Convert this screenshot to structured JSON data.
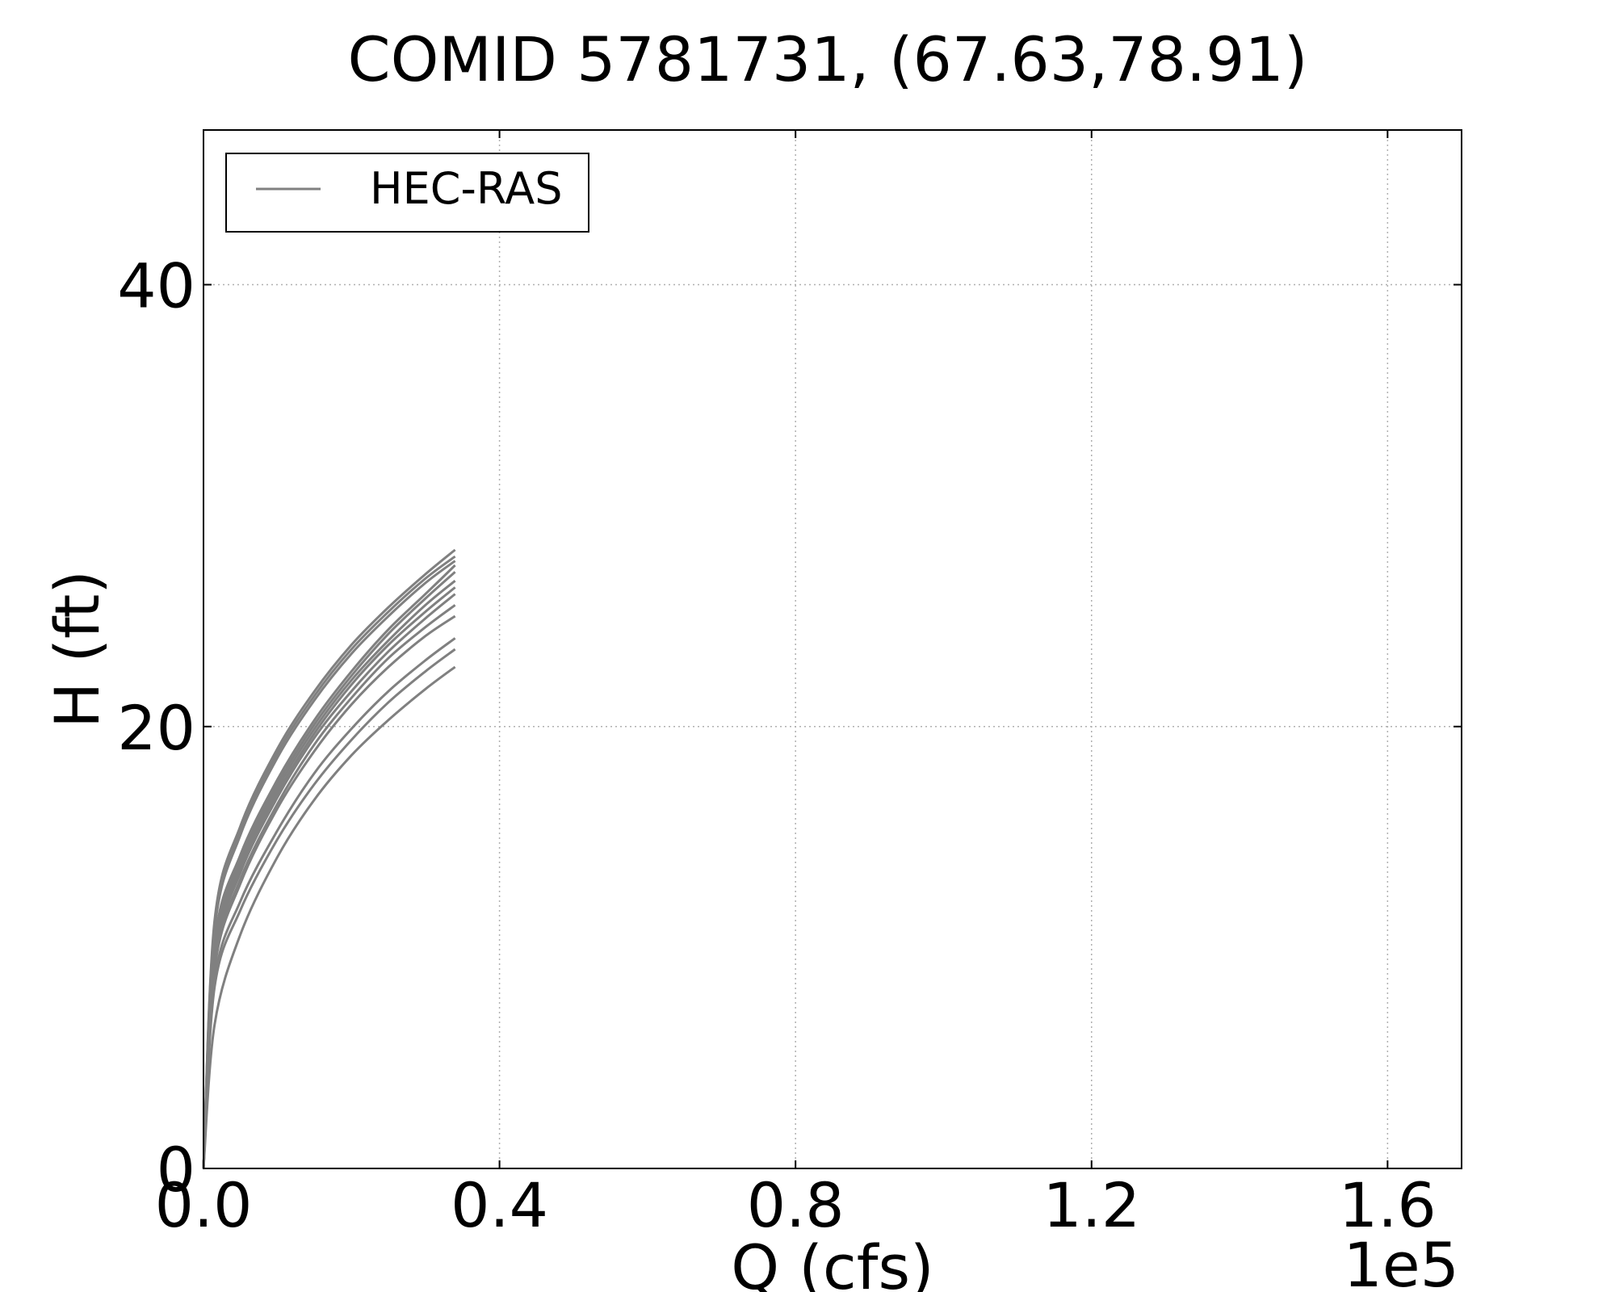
{
  "chart_data": {
    "type": "line",
    "title": "COMID 5781731, (67.63,78.91)",
    "xlabel": "Q (cfs)",
    "ylabel": "H (ft)",
    "x_offset_label": "1e5",
    "xlim": [
      0,
      1.7
    ],
    "ylim": [
      0,
      47
    ],
    "xticks": [
      0.0,
      0.4,
      0.8,
      1.2,
      1.6
    ],
    "xtick_labels": [
      "0.0",
      "0.4",
      "0.8",
      "1.2",
      "1.6"
    ],
    "yticks": [
      0,
      20,
      40
    ],
    "ytick_labels": [
      "0",
      "20",
      "40"
    ],
    "grid": true,
    "legend": {
      "position": "top-left",
      "entries": [
        "HEC-RAS"
      ]
    },
    "line_color": "#808080",
    "series": [
      {
        "x": [
          0,
          0.015,
          0.05,
          0.1,
          0.15,
          0.2,
          0.25,
          0.3,
          0.34
        ],
        "y": [
          0,
          11.2,
          15.5,
          19.0,
          21.6,
          23.7,
          25.4,
          26.9,
          28.0
        ]
      },
      {
        "x": [
          0,
          0.015,
          0.05,
          0.1,
          0.15,
          0.2,
          0.25,
          0.3,
          0.34
        ],
        "y": [
          0,
          11.0,
          15.3,
          18.8,
          21.4,
          23.5,
          25.2,
          26.7,
          27.7
        ]
      },
      {
        "x": [
          0,
          0.015,
          0.05,
          0.1,
          0.15,
          0.2,
          0.25,
          0.3,
          0.34
        ],
        "y": [
          0,
          10.8,
          15.1,
          18.6,
          21.2,
          23.3,
          25.0,
          26.5,
          27.5
        ]
      },
      {
        "x": [
          0,
          0.015,
          0.05,
          0.1,
          0.15,
          0.2,
          0.25,
          0.3,
          0.34
        ],
        "y": [
          0,
          10.2,
          14.2,
          17.6,
          20.3,
          22.5,
          24.4,
          26.0,
          27.3
        ]
      },
      {
        "x": [
          0,
          0.015,
          0.05,
          0.1,
          0.15,
          0.2,
          0.25,
          0.3,
          0.34
        ],
        "y": [
          0,
          10.0,
          14.0,
          17.4,
          20.1,
          22.3,
          24.2,
          25.8,
          27.0
        ]
      },
      {
        "x": [
          0,
          0.015,
          0.05,
          0.1,
          0.15,
          0.2,
          0.25,
          0.3,
          0.34
        ],
        "y": [
          0,
          9.8,
          13.8,
          17.2,
          19.9,
          22.1,
          23.9,
          25.5,
          26.6
        ]
      },
      {
        "x": [
          0,
          0.015,
          0.05,
          0.1,
          0.15,
          0.2,
          0.25,
          0.3,
          0.34
        ],
        "y": [
          0,
          9.6,
          13.6,
          17.0,
          19.7,
          21.9,
          23.7,
          25.2,
          26.3
        ]
      },
      {
        "x": [
          0,
          0.015,
          0.05,
          0.1,
          0.15,
          0.2,
          0.25,
          0.3,
          0.34
        ],
        "y": [
          0,
          9.4,
          13.4,
          16.8,
          19.5,
          21.6,
          23.4,
          24.9,
          26.0
        ]
      },
      {
        "x": [
          0,
          0.015,
          0.05,
          0.1,
          0.15,
          0.2,
          0.25,
          0.3,
          0.34
        ],
        "y": [
          0,
          9.2,
          13.1,
          16.5,
          19.2,
          21.3,
          23.1,
          24.5,
          25.5
        ]
      },
      {
        "x": [
          0,
          0.015,
          0.05,
          0.1,
          0.15,
          0.2,
          0.25,
          0.3,
          0.34
        ],
        "y": [
          0,
          9.0,
          12.9,
          16.3,
          18.9,
          21.0,
          22.7,
          24.1,
          25.0
        ]
      },
      {
        "x": [
          0,
          0.015,
          0.05,
          0.1,
          0.15,
          0.2,
          0.25,
          0.3,
          0.34
        ],
        "y": [
          0,
          8.5,
          12.1,
          15.3,
          17.9,
          19.9,
          21.6,
          23.0,
          24.0
        ]
      },
      {
        "x": [
          0,
          0.015,
          0.05,
          0.1,
          0.15,
          0.2,
          0.25,
          0.3,
          0.34
        ],
        "y": [
          0,
          8.2,
          11.7,
          14.9,
          17.4,
          19.4,
          21.1,
          22.5,
          23.5
        ]
      },
      {
        "x": [
          0,
          0.015,
          0.05,
          0.1,
          0.15,
          0.2,
          0.25,
          0.3,
          0.34
        ],
        "y": [
          0,
          6.5,
          10.6,
          14.1,
          16.7,
          18.7,
          20.3,
          21.7,
          22.7
        ]
      }
    ]
  }
}
